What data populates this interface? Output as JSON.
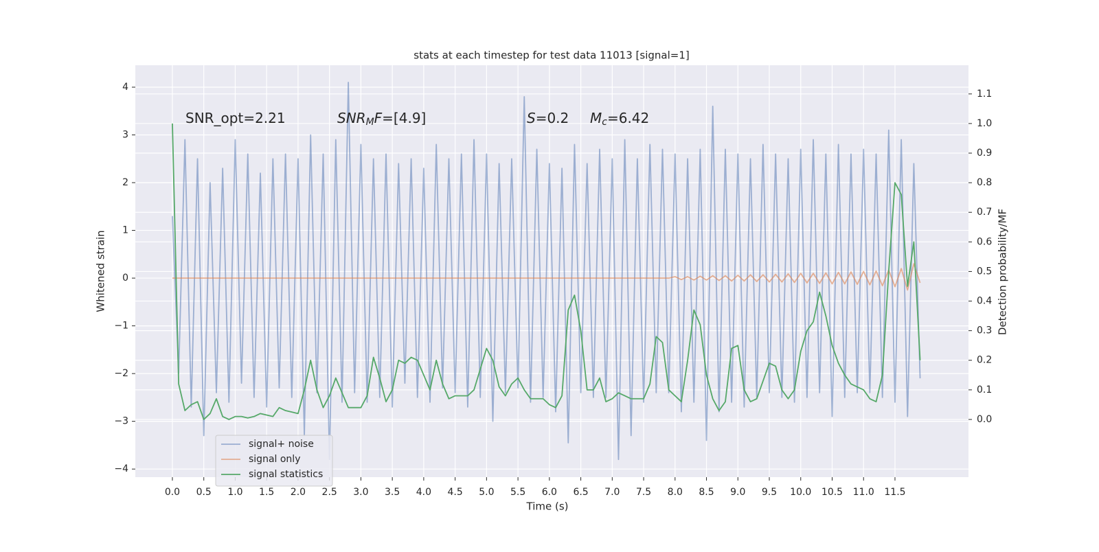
{
  "chart_data": {
    "type": "line",
    "title": "stats at each timestep for test data 11013 [signal=1]",
    "xlabel": "Time (s)",
    "ylabel": "Whitened strain",
    "y2label": "Detection probability/MF",
    "x": [
      0,
      0.1,
      0.2,
      0.3,
      0.4,
      0.5,
      0.6,
      0.7,
      0.8,
      0.9,
      1,
      1.1,
      1.2,
      1.3,
      1.4,
      1.5,
      1.6,
      1.7,
      1.8,
      1.9,
      2,
      2.1,
      2.2,
      2.3,
      2.4,
      2.5,
      2.6,
      2.7,
      2.8,
      2.9,
      3,
      3.1,
      3.2,
      3.3,
      3.4,
      3.5,
      3.6,
      3.7,
      3.8,
      3.9,
      4,
      4.1,
      4.2,
      4.3,
      4.4,
      4.5,
      4.6,
      4.7,
      4.8,
      4.9,
      5,
      5.1,
      5.2,
      5.3,
      5.4,
      5.5,
      5.6,
      5.7,
      5.8,
      5.9,
      6,
      6.1,
      6.2,
      6.3,
      6.4,
      6.5,
      6.6,
      6.7,
      6.8,
      6.9,
      7,
      7.1,
      7.2,
      7.3,
      7.4,
      7.5,
      7.6,
      7.7,
      7.8,
      7.9,
      8,
      8.1,
      8.2,
      8.3,
      8.4,
      8.5,
      8.6,
      8.7,
      8.8,
      8.9,
      9,
      9.1,
      9.2,
      9.3,
      9.4,
      9.5,
      9.6,
      9.7,
      9.8,
      9.9,
      10,
      10.1,
      10.2,
      10.3,
      10.4,
      10.5,
      10.6,
      10.7,
      10.8,
      10.9,
      11,
      11.1,
      11.2,
      11.3,
      11.4,
      11.5,
      11.6,
      11.7,
      11.8,
      11.9
    ],
    "series": [
      {
        "name": "signal+ noise",
        "color": "#4c72b0",
        "opacity": 0.5,
        "values": [
          1.3,
          -2.0,
          2.9,
          -2.7,
          2.5,
          -3.3,
          2.0,
          -2.4,
          2.3,
          -2.6,
          2.9,
          -2.2,
          2.6,
          -2.5,
          2.2,
          -2.7,
          2.5,
          -2.3,
          2.6,
          -2.5,
          2.5,
          -3.3,
          3.0,
          -2.4,
          2.6,
          -3.8,
          2.9,
          -2.6,
          4.1,
          -2.4,
          2.8,
          -2.6,
          2.5,
          -2.5,
          2.6,
          -2.7,
          2.4,
          -2.2,
          2.5,
          -2.5,
          2.3,
          -2.6,
          2.8,
          -2.3,
          2.5,
          -2.4,
          2.6,
          -2.7,
          2.9,
          -2.5,
          2.6,
          -3.0,
          2.4,
          -2.4,
          2.5,
          -2.3,
          3.8,
          -2.6,
          2.7,
          -2.5,
          2.4,
          -2.8,
          2.3,
          -3.45,
          2.8,
          -2.4,
          2.4,
          -2.5,
          2.7,
          -2.5,
          2.5,
          -3.8,
          2.9,
          -3.3,
          2.5,
          -2.6,
          2.8,
          -2.4,
          2.7,
          -2.4,
          2.6,
          -2.8,
          2.5,
          -2.6,
          2.7,
          -3.4,
          3.6,
          -2.8,
          2.7,
          -2.6,
          2.6,
          -2.7,
          2.5,
          -2.5,
          2.8,
          -2.4,
          2.6,
          -2.5,
          2.5,
          -2.6,
          2.7,
          -2.5,
          2.9,
          -2.4,
          2.6,
          -2.9,
          2.8,
          -2.5,
          2.6,
          -2.4,
          2.7,
          -2.4,
          2.6,
          -2.5,
          3.1,
          -2.6,
          2.9,
          -2.9,
          2.4,
          -2.1
        ]
      },
      {
        "name": "signal only",
        "color": "#dd8452",
        "opacity": 0.6,
        "values": [
          0,
          0,
          0,
          0,
          0,
          0,
          0,
          0,
          0,
          0,
          0,
          0,
          0,
          0,
          0,
          0,
          0,
          0,
          0,
          0,
          0,
          0,
          0,
          0,
          0,
          0,
          0,
          0,
          0,
          0,
          0,
          0,
          0,
          0,
          0,
          0,
          0,
          0,
          0,
          0,
          0,
          0,
          0,
          0,
          0,
          0,
          0,
          0,
          0,
          0,
          0,
          0,
          0,
          0,
          0,
          0,
          0,
          0,
          0,
          0,
          0,
          0,
          0,
          0,
          0,
          0,
          0,
          0,
          0,
          0,
          0,
          0,
          0,
          0,
          0,
          0,
          0,
          0,
          0,
          0,
          0.03,
          -0.03,
          0.03,
          -0.04,
          0.04,
          -0.04,
          0.05,
          -0.05,
          0.05,
          -0.06,
          0.06,
          -0.06,
          0.07,
          -0.07,
          0.07,
          -0.08,
          0.08,
          -0.08,
          0.09,
          -0.09,
          0.1,
          -0.1,
          0.1,
          -0.11,
          0.11,
          -0.12,
          0.12,
          -0.12,
          0.13,
          -0.13,
          0.14,
          -0.14,
          0.15,
          -0.16,
          0.17,
          -0.18,
          0.2,
          -0.25,
          0.3,
          -0.1
        ]
      },
      {
        "name": "signal statistics",
        "color": "#55a868",
        "opacity": 1,
        "axis": "y2",
        "values": [
          1.0,
          0.12,
          0.03,
          0.05,
          0.06,
          0.0,
          0.02,
          0.07,
          0.01,
          0.0,
          0.01,
          0.01,
          0.005,
          0.01,
          0.02,
          0.015,
          0.01,
          0.04,
          0.03,
          0.025,
          0.02,
          0.1,
          0.2,
          0.1,
          0.04,
          0.08,
          0.14,
          0.09,
          0.04,
          0.04,
          0.04,
          0.08,
          0.21,
          0.14,
          0.06,
          0.1,
          0.2,
          0.19,
          0.21,
          0.2,
          0.15,
          0.1,
          0.2,
          0.12,
          0.07,
          0.08,
          0.08,
          0.08,
          0.1,
          0.17,
          0.24,
          0.2,
          0.11,
          0.08,
          0.12,
          0.14,
          0.1,
          0.07,
          0.07,
          0.07,
          0.05,
          0.04,
          0.08,
          0.37,
          0.42,
          0.3,
          0.1,
          0.1,
          0.14,
          0.06,
          0.07,
          0.09,
          0.08,
          0.07,
          0.07,
          0.07,
          0.12,
          0.28,
          0.26,
          0.1,
          0.08,
          0.06,
          0.2,
          0.37,
          0.32,
          0.15,
          0.07,
          0.03,
          0.06,
          0.24,
          0.25,
          0.1,
          0.06,
          0.07,
          0.13,
          0.19,
          0.18,
          0.1,
          0.07,
          0.1,
          0.23,
          0.3,
          0.33,
          0.43,
          0.35,
          0.25,
          0.19,
          0.15,
          0.12,
          0.11,
          0.1,
          0.07,
          0.06,
          0.15,
          0.5,
          0.8,
          0.76,
          0.45,
          0.6,
          0.2
        ]
      }
    ],
    "annotations": [
      [
        {
          "text": "SNR_opt=2.21"
        }
      ],
      [
        {
          "text": "SNR",
          "italic": true
        },
        {
          "text": "M",
          "italic": true,
          "sub": true
        },
        {
          "text": "F",
          "italic": true
        },
        {
          "text": "=[4.9]"
        }
      ],
      [
        {
          "text": "S",
          "italic": true
        },
        {
          "text": "=0.2"
        }
      ],
      [
        {
          "text": "M",
          "italic": true
        },
        {
          "text": "c",
          "italic": true,
          "sub": true
        },
        {
          "text": "=6.42"
        }
      ]
    ],
    "xlim": [
      -0.59,
      12.67
    ],
    "ylim": [
      -4.17,
      4.46
    ],
    "y2lim": [
      -0.195,
      1.197
    ],
    "xticks": [
      {
        "value": 0,
        "label": "0.0"
      },
      0.5,
      {
        "value": 1,
        "label": "1.0"
      },
      1.5,
      {
        "value": 2,
        "label": "2.0"
      },
      2.5,
      {
        "value": 3,
        "label": "3.0"
      },
      3.5,
      {
        "value": 4,
        "label": "4.0"
      },
      4.5,
      {
        "value": 5,
        "label": "5.0"
      },
      5.5,
      {
        "value": 6,
        "label": "6.0"
      },
      6.5,
      {
        "value": 7,
        "label": "7.0"
      },
      7.5,
      {
        "value": 8,
        "label": "8.0"
      },
      8.5,
      {
        "value": 9,
        "label": "9.0"
      },
      9.5,
      {
        "value": 10,
        "label": "10.0"
      },
      10.5,
      {
        "value": 11,
        "label": "11.0"
      },
      11.5
    ],
    "yticks": [
      {
        "value": -4,
        "label": "−4"
      },
      {
        "value": -3,
        "label": "−3"
      },
      {
        "value": -2,
        "label": "−2"
      },
      {
        "value": -1,
        "label": "−1"
      },
      0,
      1,
      2,
      3,
      4
    ],
    "y2ticks": [
      {
        "value": 0,
        "label": "0.0"
      },
      0.1,
      0.2,
      0.3,
      0.4,
      0.5,
      0.6,
      0.7,
      0.8,
      0.9,
      {
        "value": 1,
        "label": "1.0"
      },
      1.1
    ],
    "grid": true,
    "background": "#eaeaf2",
    "legend": "lower left"
  }
}
